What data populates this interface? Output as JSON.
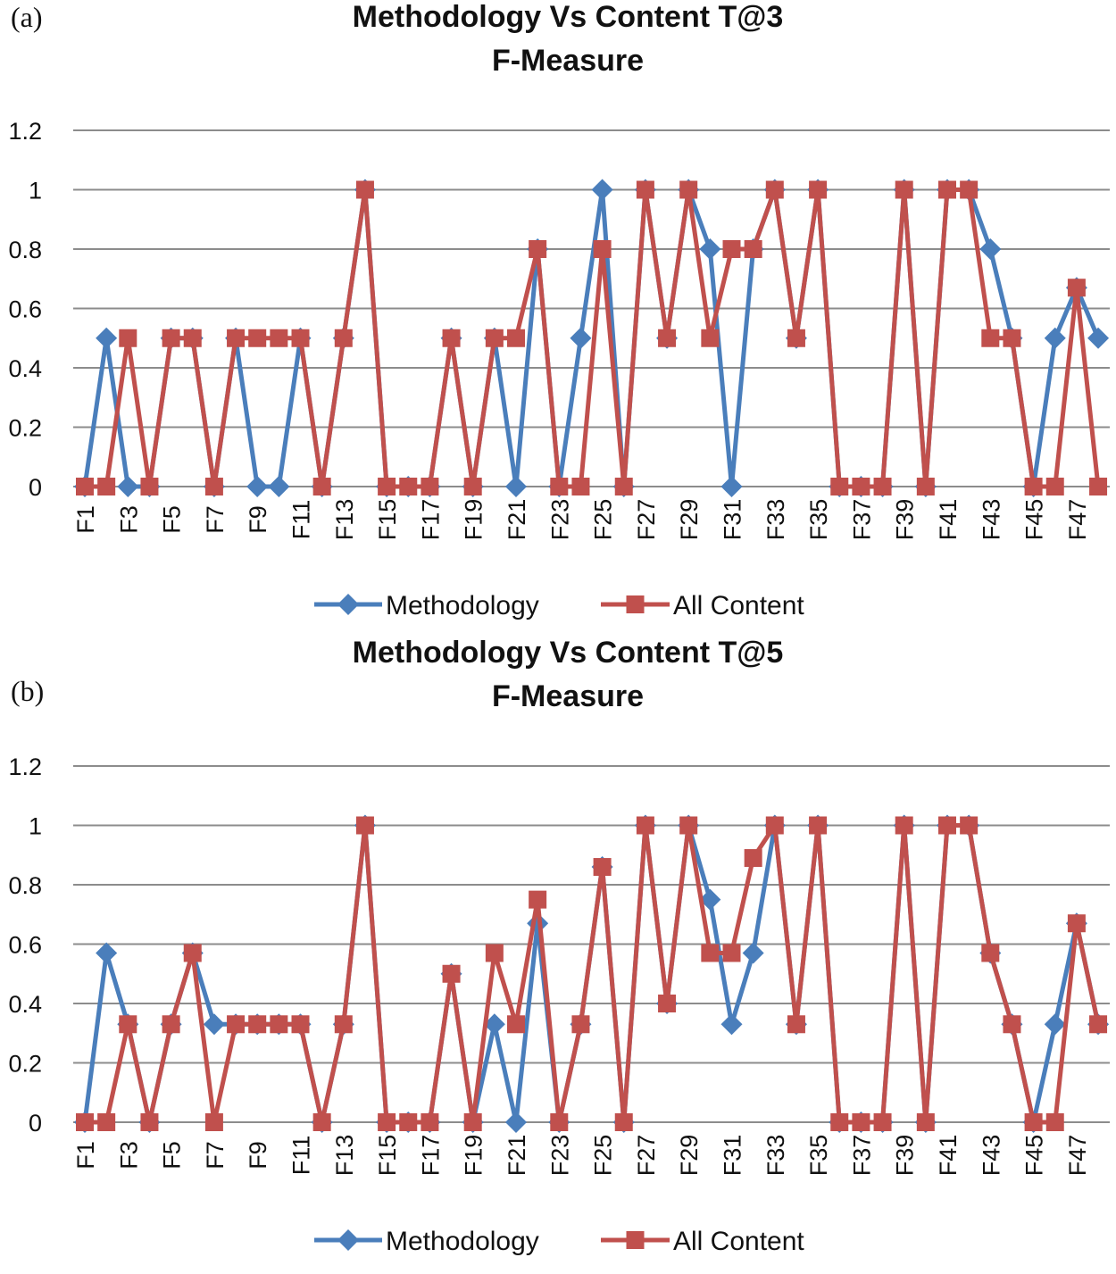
{
  "chart_data": [
    {
      "panel_label": "(a)",
      "type": "line",
      "title": "Methodology Vs Content T@3",
      "subtitle": "F-Measure",
      "ylim": [
        0,
        1.2
      ],
      "yticks": [
        "0",
        "0.2",
        "0.4",
        "0.6",
        "0.8",
        "1",
        "1.2"
      ],
      "grid": true,
      "legend_position": "bottom",
      "x": [
        "F1",
        "F2",
        "F3",
        "F4",
        "F5",
        "F6",
        "F7",
        "F8",
        "F9",
        "F10",
        "F11",
        "F12",
        "F13",
        "F14",
        "F15",
        "F16",
        "F17",
        "F18",
        "F19",
        "F20",
        "F21",
        "F22",
        "F23",
        "F24",
        "F25",
        "F26",
        "F27",
        "F28",
        "F29",
        "F30",
        "F31",
        "F32",
        "F33",
        "F34",
        "F35",
        "F36",
        "F37",
        "F38",
        "F39",
        "F40",
        "F41",
        "F42",
        "F43",
        "F44",
        "F45",
        "F46",
        "F47",
        "F48"
      ],
      "xticks": [
        "F1",
        "F3",
        "F5",
        "F7",
        "F9",
        "F11",
        "F13",
        "F15",
        "F17",
        "F19",
        "F21",
        "F23",
        "F25",
        "F27",
        "F29",
        "F31",
        "F33",
        "F35",
        "F37",
        "F39",
        "F41",
        "F43",
        "F45",
        "F47"
      ],
      "series": [
        {
          "name": "Methodology",
          "color": "#4A7EBB",
          "marker": "diamond",
          "values": [
            0,
            0.5,
            0,
            0,
            0.5,
            0.5,
            0,
            0.5,
            0,
            0,
            0.5,
            0,
            0.5,
            1,
            0,
            0,
            0,
            0.5,
            0,
            0.5,
            0,
            0.8,
            0,
            0.5,
            1,
            0,
            1,
            0.5,
            1,
            0.8,
            0,
            0.8,
            1,
            0.5,
            1,
            0,
            0,
            0,
            1,
            0,
            1,
            1,
            0.8,
            0.5,
            0,
            0.5,
            0.67,
            0.5
          ]
        },
        {
          "name": "All Content",
          "color": "#C0504D",
          "marker": "square",
          "values": [
            0,
            0,
            0.5,
            0,
            0.5,
            0.5,
            0,
            0.5,
            0.5,
            0.5,
            0.5,
            0,
            0.5,
            1,
            0,
            0,
            0,
            0.5,
            0,
            0.5,
            0.5,
            0.8,
            0,
            0,
            0.8,
            0,
            1,
            0.5,
            1,
            0.5,
            0.8,
            0.8,
            1,
            0.5,
            1,
            0,
            0,
            0,
            1,
            0,
            1,
            1,
            0.5,
            0.5,
            0,
            0,
            0.67,
            0
          ]
        }
      ]
    },
    {
      "panel_label": "(b)",
      "type": "line",
      "title": "Methodology Vs Content T@5",
      "subtitle": "F-Measure",
      "ylim": [
        0,
        1.2
      ],
      "yticks": [
        "0",
        "0.2",
        "0.4",
        "0.6",
        "0.8",
        "1",
        "1.2"
      ],
      "grid": true,
      "legend_position": "bottom",
      "x": [
        "F1",
        "F2",
        "F3",
        "F4",
        "F5",
        "F6",
        "F7",
        "F8",
        "F9",
        "F10",
        "F11",
        "F12",
        "F13",
        "F14",
        "F15",
        "F16",
        "F17",
        "F18",
        "F19",
        "F20",
        "F21",
        "F22",
        "F23",
        "F24",
        "F25",
        "F26",
        "F27",
        "F28",
        "F29",
        "F30",
        "F31",
        "F32",
        "F33",
        "F34",
        "F35",
        "F36",
        "F37",
        "F38",
        "F39",
        "F40",
        "F41",
        "F42",
        "F43",
        "F44",
        "F45",
        "F46",
        "F47",
        "F48"
      ],
      "xticks": [
        "F1",
        "F3",
        "F5",
        "F7",
        "F9",
        "F11",
        "F13",
        "F15",
        "F17",
        "F19",
        "F21",
        "F23",
        "F25",
        "F27",
        "F29",
        "F31",
        "F33",
        "F35",
        "F37",
        "F39",
        "F41",
        "F43",
        "F45",
        "F47"
      ],
      "series": [
        {
          "name": "Methodology",
          "color": "#4A7EBB",
          "marker": "diamond",
          "values": [
            0,
            0.57,
            0.33,
            0,
            0.33,
            0.57,
            0.33,
            0.33,
            0.33,
            0.33,
            0.33,
            0,
            0.33,
            1,
            0,
            0,
            0,
            0.5,
            0,
            0.33,
            0,
            0.67,
            0,
            0.33,
            0.86,
            0,
            1,
            0.4,
            1,
            0.75,
            0.33,
            0.57,
            1,
            0.33,
            1,
            0,
            0,
            0,
            1,
            0,
            1,
            1,
            0.57,
            0.33,
            0,
            0.33,
            0.67,
            0.33
          ]
        },
        {
          "name": "All Content",
          "color": "#C0504D",
          "marker": "square",
          "values": [
            0,
            0,
            0.33,
            0,
            0.33,
            0.57,
            0,
            0.33,
            0.33,
            0.33,
            0.33,
            0,
            0.33,
            1,
            0,
            0,
            0,
            0.5,
            0,
            0.57,
            0.33,
            0.75,
            0,
            0.33,
            0.86,
            0,
            1,
            0.4,
            1,
            0.57,
            0.57,
            0.89,
            1,
            0.33,
            1,
            0,
            0,
            0,
            1,
            0,
            1,
            1,
            0.57,
            0.33,
            0,
            0,
            0.67,
            0.33
          ]
        }
      ]
    }
  ]
}
